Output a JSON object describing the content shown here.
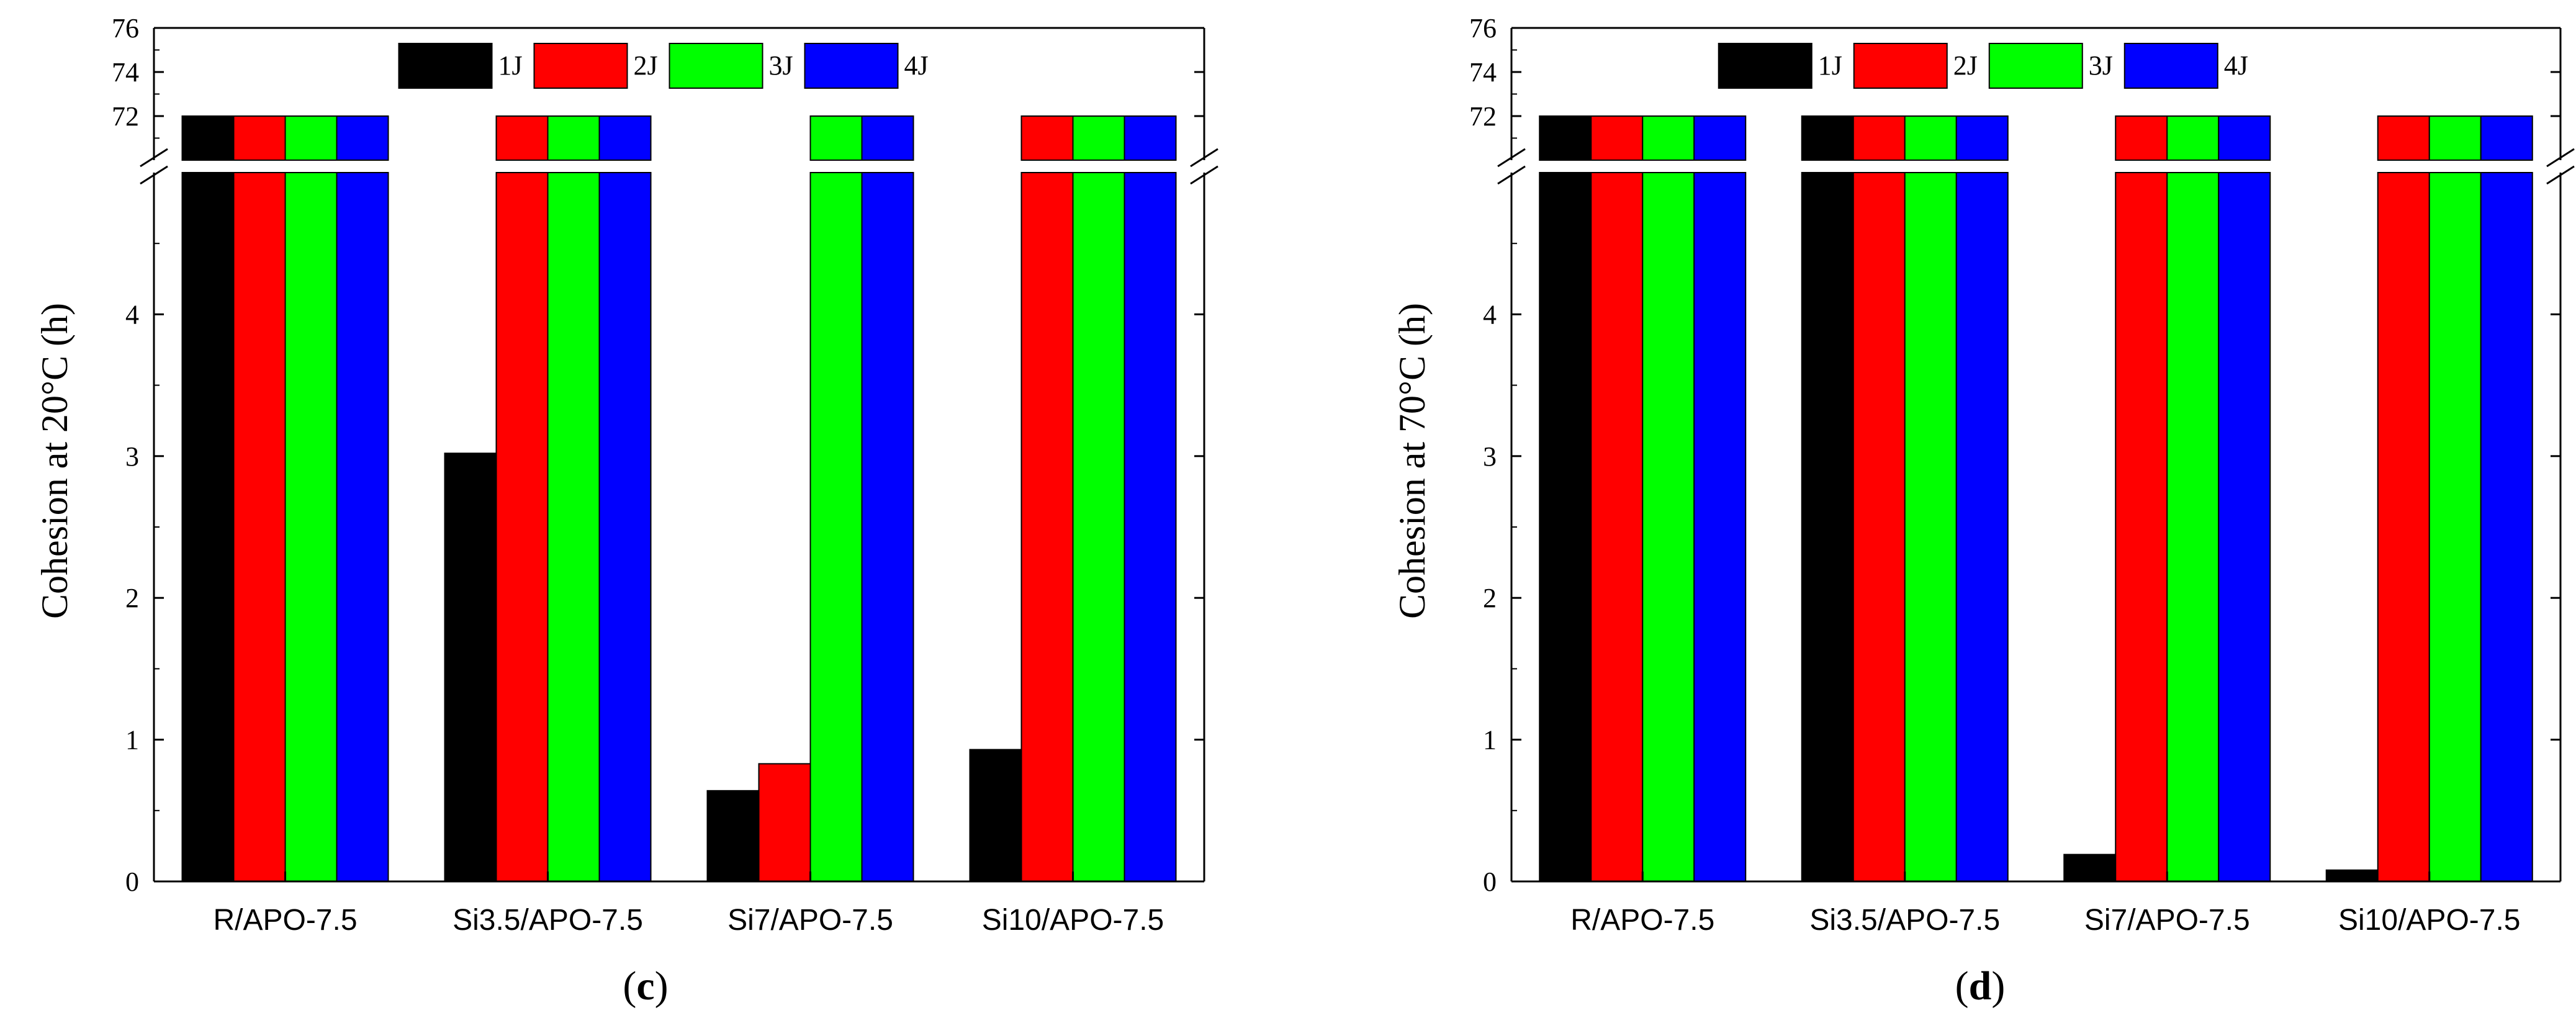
{
  "chart_data": [
    {
      "type": "bar",
      "panel_label_prefix": "(",
      "panel_label_letter": "c",
      "panel_label_suffix": ")",
      "ylabel": "Cohesion at 20°C (h)",
      "categories": [
        "R/APO-7.5",
        "Si3.5/APO-7.5",
        "Si7/APO-7.5",
        "Si10/APO-7.5"
      ],
      "series": [
        {
          "name": "1J",
          "color": "#000000",
          "values": [
            72,
            3.02,
            0.64,
            0.93
          ]
        },
        {
          "name": "2J",
          "color": "#ff0000",
          "values": [
            72,
            72,
            0.83,
            72
          ]
        },
        {
          "name": "3J",
          "color": "#00ff00",
          "values": [
            72,
            72,
            72,
            72
          ]
        },
        {
          "name": "4J",
          "color": "#0000ff",
          "values": [
            72,
            72,
            72,
            72
          ]
        }
      ],
      "y_lower_range": [
        0,
        5
      ],
      "y_upper_range": [
        70,
        76
      ],
      "y_lower_ticks": [
        0,
        1,
        2,
        3,
        4
      ],
      "y_upper_ticks": [
        72,
        74,
        76
      ],
      "axis_break": true,
      "legend_position": "top"
    },
    {
      "type": "bar",
      "panel_label_prefix": "(",
      "panel_label_letter": "d",
      "panel_label_suffix": ")",
      "ylabel": "Cohesion at 70°C (h)",
      "categories": [
        "R/APO-7.5",
        "Si3.5/APO-7.5",
        "Si7/APO-7.5",
        "Si10/APO-7.5"
      ],
      "series": [
        {
          "name": "1J",
          "color": "#000000",
          "values": [
            72,
            72,
            0.19,
            0.08
          ]
        },
        {
          "name": "2J",
          "color": "#ff0000",
          "values": [
            72,
            72,
            72,
            72
          ]
        },
        {
          "name": "3J",
          "color": "#00ff00",
          "values": [
            72,
            72,
            72,
            72
          ]
        },
        {
          "name": "4J",
          "color": "#0000ff",
          "values": [
            72,
            72,
            72,
            72
          ]
        }
      ],
      "y_lower_range": [
        0,
        5
      ],
      "y_upper_range": [
        70,
        76
      ],
      "y_lower_ticks": [
        0,
        1,
        2,
        3,
        4
      ],
      "y_upper_ticks": [
        72,
        74,
        76
      ],
      "axis_break": true,
      "legend_position": "top"
    }
  ]
}
